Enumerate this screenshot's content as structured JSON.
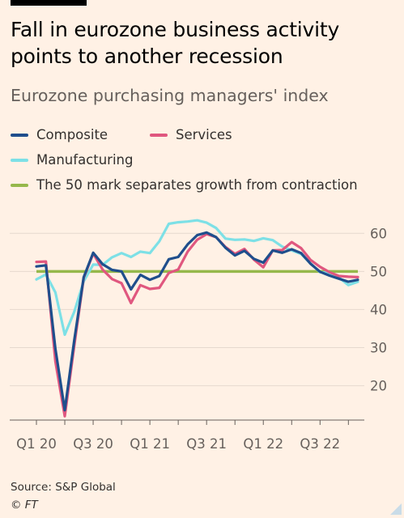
{
  "header": {
    "title": "Fall in eurozone business activity points to another recession",
    "subtitle": "Eurozone purchasing managers' index"
  },
  "legend": [
    {
      "label": "Composite",
      "color": "#1F4E8C"
    },
    {
      "label": "Services",
      "color": "#E0577F"
    },
    {
      "label": "Manufacturing",
      "color": "#7DE0E6"
    },
    {
      "label": "The 50 mark separates growth from contraction",
      "color": "#96B84B"
    }
  ],
  "footer": {
    "source": "Source: S&P Global",
    "credit": "© FT"
  },
  "chart_data": {
    "type": "line",
    "x": [
      "2020-01",
      "2020-02",
      "2020-03",
      "2020-04",
      "2020-05",
      "2020-06",
      "2020-07",
      "2020-08",
      "2020-09",
      "2020-10",
      "2020-11",
      "2020-12",
      "2021-01",
      "2021-02",
      "2021-03",
      "2021-04",
      "2021-05",
      "2021-06",
      "2021-07",
      "2021-08",
      "2021-09",
      "2021-10",
      "2021-11",
      "2021-12",
      "2022-01",
      "2022-02",
      "2022-03",
      "2022-04",
      "2022-05",
      "2022-06",
      "2022-07",
      "2022-08",
      "2022-09",
      "2022-10",
      "2022-11"
    ],
    "series": [
      {
        "name": "Manufacturing",
        "color": "#7DE0E6",
        "values": [
          47.9,
          49.2,
          44.5,
          33.4,
          39.4,
          47.4,
          51.8,
          51.7,
          53.7,
          54.8,
          53.8,
          55.2,
          54.8,
          57.9,
          62.5,
          62.9,
          63.1,
          63.4,
          62.8,
          61.4,
          58.6,
          58.3,
          58.4,
          58.0,
          58.7,
          58.2,
          56.5,
          55.5,
          54.6,
          52.1,
          49.8,
          49.6,
          48.4,
          46.4,
          47.3
        ]
      },
      {
        "name": "Services",
        "color": "#E0577F",
        "values": [
          52.5,
          52.6,
          26.4,
          12.0,
          30.5,
          48.3,
          54.7,
          50.5,
          48.0,
          46.9,
          41.7,
          46.4,
          45.4,
          45.7,
          49.6,
          50.5,
          55.2,
          58.3,
          59.8,
          59.0,
          56.4,
          54.6,
          55.9,
          53.1,
          51.1,
          55.5,
          55.6,
          57.7,
          56.1,
          53.0,
          51.2,
          49.8,
          48.8,
          48.6,
          48.5
        ]
      },
      {
        "name": "Composite",
        "color": "#1F4E8C",
        "values": [
          51.3,
          51.6,
          29.7,
          13.6,
          31.9,
          48.5,
          54.9,
          51.9,
          50.4,
          50.0,
          45.3,
          49.1,
          47.8,
          48.8,
          53.2,
          53.8,
          57.1,
          59.5,
          60.2,
          59.0,
          56.2,
          54.2,
          55.4,
          53.3,
          52.3,
          55.5,
          54.9,
          55.8,
          54.8,
          52.0,
          49.9,
          48.9,
          48.1,
          47.3,
          47.8
        ]
      }
    ],
    "reference_line": {
      "value": 50,
      "color": "#96B84B"
    },
    "x_tick_labels": [
      "Q1 20",
      "Q3 20",
      "Q1 21",
      "Q3 21",
      "Q1 22",
      "Q3 22"
    ],
    "y_ticks": [
      20,
      30,
      40,
      50,
      60
    ],
    "ylim": [
      11,
      66
    ],
    "y_axis_side": "right",
    "grid": true
  }
}
